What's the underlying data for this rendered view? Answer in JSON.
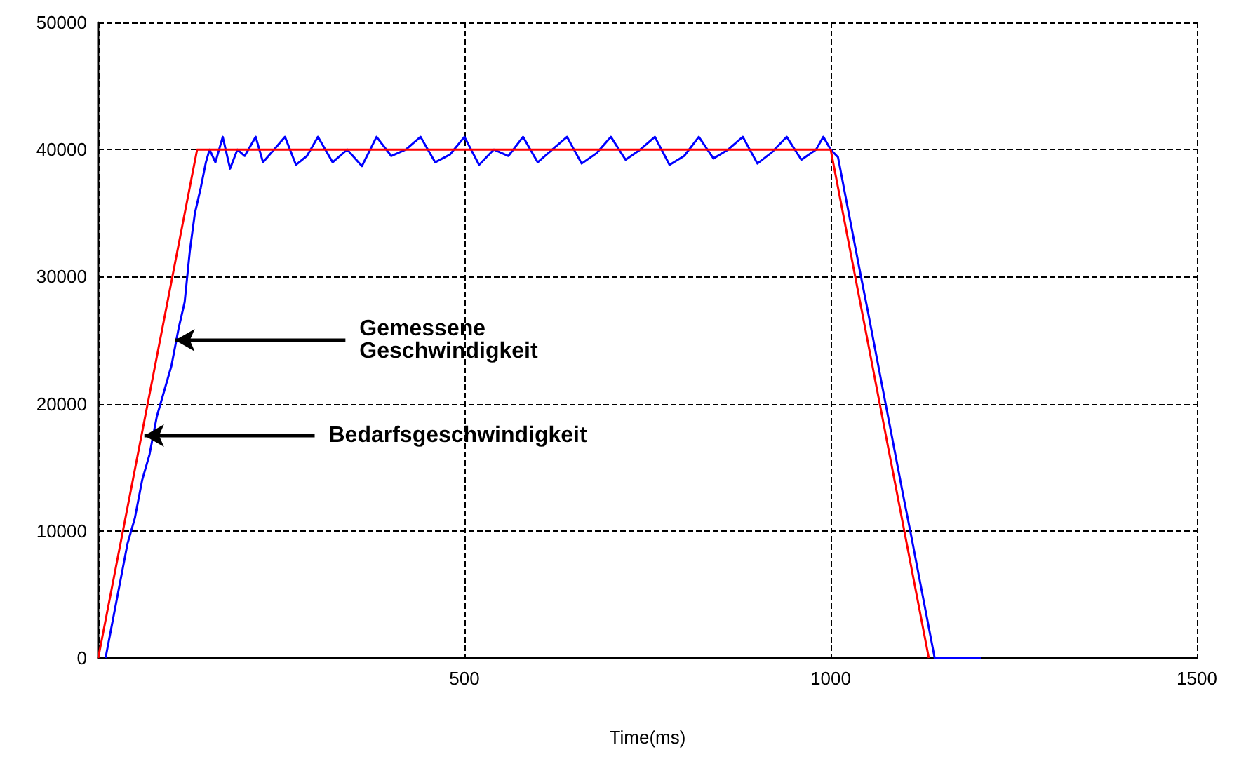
{
  "chart_data": {
    "type": "line",
    "xlabel": "Time(ms)",
    "xlim": [
      0,
      1500
    ],
    "xticks": [
      {
        "value": 0,
        "label": null
      },
      500,
      1000,
      1500
    ],
    "ylim": [
      0,
      50000
    ],
    "yticks": [
      0,
      10000,
      20000,
      30000,
      40000,
      50000
    ],
    "grid": true,
    "marker": "none",
    "line_style": "solid",
    "series": [
      {
        "color": "#0000ff",
        "x": [
          10,
          20,
          30,
          40,
          50,
          60,
          70,
          80,
          90,
          100,
          110,
          118,
          125,
          132,
          140,
          147,
          152,
          160,
          170,
          180,
          190,
          200,
          215,
          225,
          240,
          255,
          270,
          285,
          300,
          320,
          340,
          360,
          380,
          400,
          420,
          440,
          460,
          480,
          500,
          520,
          540,
          560,
          580,
          600,
          620,
          640,
          660,
          680,
          700,
          720,
          740,
          760,
          780,
          800,
          820,
          840,
          860,
          880,
          900,
          920,
          940,
          960,
          980,
          990,
          1000,
          1010,
          1020,
          1030,
          1040,
          1050,
          1060,
          1070,
          1080,
          1090,
          1100,
          1110,
          1120,
          1130,
          1142,
          1160,
          1180,
          1205
        ],
        "values": [
          0,
          3000,
          6000,
          9000,
          11000,
          14000,
          16000,
          19000,
          21000,
          23000,
          26000,
          28000,
          32000,
          35000,
          37000,
          39000,
          40000,
          39000,
          41000,
          38500,
          40000,
          39500,
          41000,
          39000,
          40000,
          41000,
          38800,
          39500,
          41000,
          39000,
          40000,
          38700,
          41000,
          39500,
          40000,
          41000,
          39000,
          39600,
          41000,
          38800,
          40000,
          39500,
          41000,
          39000,
          40000,
          41000,
          38900,
          39700,
          41000,
          39200,
          40000,
          41000,
          38800,
          39500,
          41000,
          39300,
          40000,
          41000,
          38900,
          39800,
          41000,
          39200,
          40000,
          41000,
          40000,
          39400,
          36400,
          33400,
          30400,
          27500,
          24500,
          21500,
          18500,
          15500,
          12500,
          9600,
          6600,
          3600,
          0,
          0,
          0,
          0
        ]
      },
      {
        "color": "#ff0000",
        "x": [
          0,
          135,
          1000,
          1134
        ],
        "values": [
          0,
          40000,
          40000,
          0
        ]
      }
    ],
    "annotations": [
      {
        "text": "Gemessene Geschwindigkeit",
        "x": 105,
        "y": 25000
      },
      {
        "text": "Bedarfsgeschwindigkeit",
        "x": 63,
        "y": 17500
      }
    ]
  }
}
